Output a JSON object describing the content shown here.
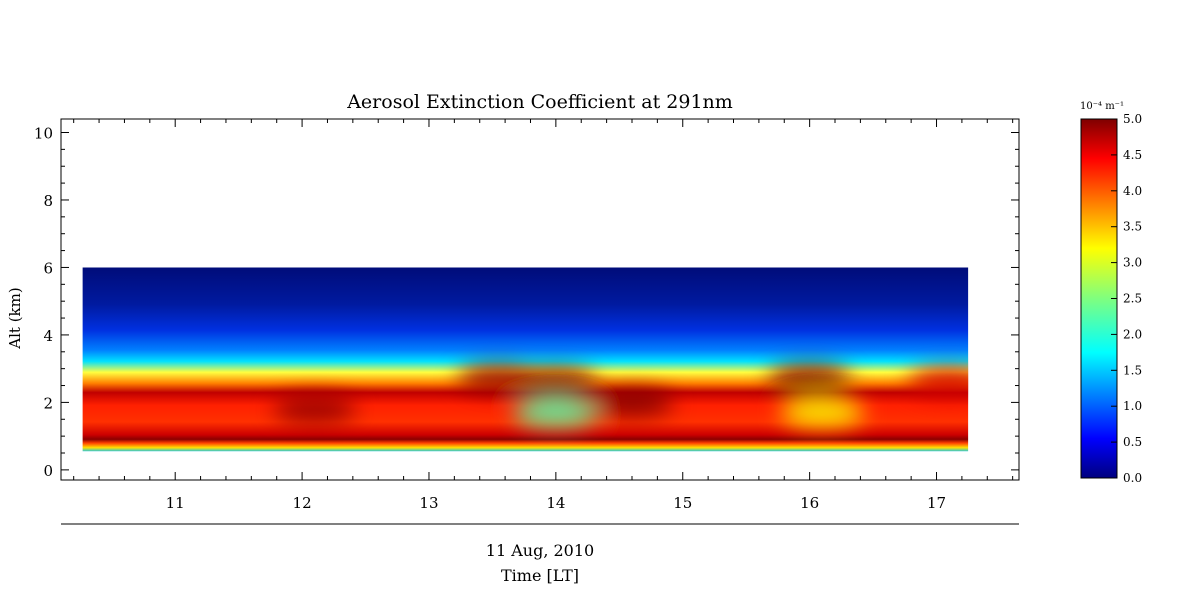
{
  "chart_data": {
    "type": "heatmap",
    "title": "Aerosol Extinction Coefficient at 291nm",
    "ylabel": "Alt (km)",
    "xlabel": "Time [LT]",
    "date_label": "11 Aug, 2010",
    "xlim": [
      10.1,
      17.65
    ],
    "ylim": [
      -0.3,
      10.4
    ],
    "x_ticks": [
      11,
      12,
      13,
      14,
      15,
      16,
      17
    ],
    "y_ticks": [
      0,
      2,
      4,
      6,
      8,
      10
    ],
    "data_extent": {
      "x": [
        10.27,
        17.25
      ],
      "y": [
        0.55,
        6.0
      ]
    },
    "colorbar": {
      "unit": "10⁻⁴ m⁻¹",
      "range": [
        0.0,
        5.0
      ],
      "ticks": [
        "0.0",
        "0.5",
        "1.0",
        "1.5",
        "2.0",
        "2.5",
        "3.0",
        "3.5",
        "4.0",
        "4.5",
        "5.0"
      ],
      "colormap": "jet"
    },
    "features": [
      {
        "x": 13.55,
        "y": 2.7,
        "value": 4.9
      },
      {
        "x": 14.0,
        "y": 2.6,
        "value": 5.0
      },
      {
        "x": 14.0,
        "y": 1.7,
        "value": 2.3
      },
      {
        "x": 14.6,
        "y": 2.0,
        "value": 5.0
      },
      {
        "x": 16.0,
        "y": 2.7,
        "value": 5.0
      },
      {
        "x": 16.1,
        "y": 1.7,
        "value": 3.1
      },
      {
        "x": 17.1,
        "y": 2.6,
        "value": 4.6
      },
      {
        "x": 12.1,
        "y": 1.8,
        "value": 4.9
      }
    ]
  }
}
